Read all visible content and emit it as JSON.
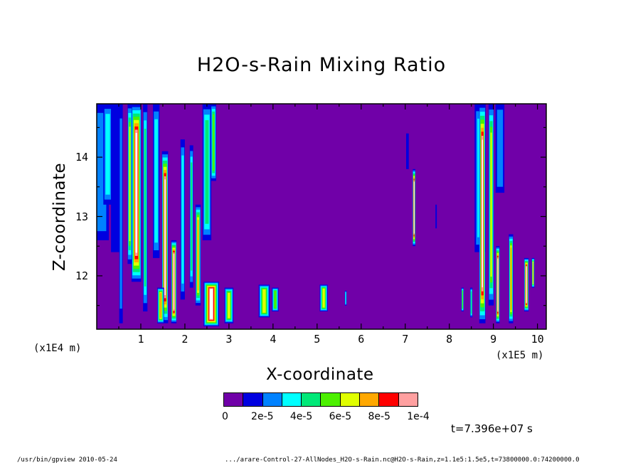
{
  "chart_data": {
    "type": "heatmap",
    "title": "H2O-s-Rain Mixing Ratio",
    "xlabel": "X-coordinate",
    "ylabel": "Z-coordinate",
    "x_unit_left": "(x1E4 m)",
    "x_unit_right": "(x1E5 m)",
    "xlim": [
      0,
      10.2
    ],
    "ylim": [
      11.1,
      14.9
    ],
    "x_ticks": [
      "1",
      "2",
      "3",
      "4",
      "5",
      "6",
      "7",
      "8",
      "9",
      "10"
    ],
    "y_ticks": [
      "12",
      "13",
      "14"
    ],
    "colorbar": {
      "levels": [
        0,
        1e-05,
        2e-05,
        3e-05,
        4e-05,
        5e-05,
        6e-05,
        7e-05,
        8e-05,
        9e-05,
        0.0001
      ],
      "colors": [
        "#7000a8",
        "#0000e0",
        "#0082ff",
        "#00ffff",
        "#00e878",
        "#4cf000",
        "#e0ff00",
        "#ffa800",
        "#ff0000",
        "#ffa0a0"
      ],
      "tick_labels": [
        "0",
        "2e-5",
        "4e-5",
        "6e-5",
        "8e-5",
        "1e-4"
      ],
      "above_max_color": "#ffffff"
    },
    "features": [
      {
        "x": 0.1,
        "z0": 12.6,
        "z1": 14.9,
        "level": 2,
        "w": 0.35
      },
      {
        "x": 0.25,
        "z0": 13.2,
        "z1": 14.9,
        "level": 3,
        "w": 0.2
      },
      {
        "x": 0.45,
        "z0": 12.4,
        "z1": 14.9,
        "level": 1,
        "w": 0.25
      },
      {
        "x": 0.55,
        "z0": 11.2,
        "z1": 14.9,
        "level": 2,
        "w": 0.08
      },
      {
        "x": 0.9,
        "z0": 11.9,
        "z1": 14.9,
        "level": 10,
        "w": 0.22
      },
      {
        "x": 0.75,
        "z0": 12.2,
        "z1": 14.9,
        "level": 6,
        "w": 0.1
      },
      {
        "x": 1.1,
        "z0": 11.4,
        "z1": 14.9,
        "level": 4,
        "w": 0.1
      },
      {
        "x": 1.35,
        "z0": 12.3,
        "z1": 14.9,
        "level": 3,
        "w": 0.15
      },
      {
        "x": 1.55,
        "z0": 11.2,
        "z1": 14.1,
        "level": 10,
        "w": 0.14
      },
      {
        "x": 1.45,
        "z0": 11.2,
        "z1": 11.8,
        "level": 7,
        "w": 0.15
      },
      {
        "x": 1.75,
        "z0": 11.2,
        "z1": 12.6,
        "level": 10,
        "w": 0.12
      },
      {
        "x": 1.95,
        "z0": 11.6,
        "z1": 14.3,
        "level": 3,
        "w": 0.1
      },
      {
        "x": 2.15,
        "z0": 11.8,
        "z1": 14.2,
        "level": 4,
        "w": 0.08
      },
      {
        "x": 2.3,
        "z0": 11.5,
        "z1": 13.2,
        "level": 7,
        "w": 0.12
      },
      {
        "x": 2.5,
        "z0": 12.6,
        "z1": 14.9,
        "level": 4,
        "w": 0.2
      },
      {
        "x": 2.65,
        "z0": 13.6,
        "z1": 14.9,
        "level": 5,
        "w": 0.12
      },
      {
        "x": 2.6,
        "z0": 11.15,
        "z1": 11.9,
        "level": 10,
        "w": 0.35
      },
      {
        "x": 3.0,
        "z0": 11.2,
        "z1": 11.8,
        "level": 6,
        "w": 0.2
      },
      {
        "x": 3.8,
        "z0": 11.3,
        "z1": 11.85,
        "level": 6,
        "w": 0.25
      },
      {
        "x": 4.05,
        "z0": 11.4,
        "z1": 11.8,
        "level": 5,
        "w": 0.15
      },
      {
        "x": 5.15,
        "z0": 11.4,
        "z1": 11.85,
        "level": 6,
        "w": 0.18
      },
      {
        "x": 5.65,
        "z0": 11.5,
        "z1": 11.75,
        "level": 3,
        "w": 0.04
      },
      {
        "x": 7.05,
        "z0": 13.8,
        "z1": 14.4,
        "level": 1,
        "w": 0.06
      },
      {
        "x": 7.2,
        "z0": 12.5,
        "z1": 13.8,
        "level": 10,
        "w": 0.06
      },
      {
        "x": 7.7,
        "z0": 12.8,
        "z1": 13.2,
        "level": 1,
        "w": 0.03
      },
      {
        "x": 8.3,
        "z0": 11.4,
        "z1": 11.8,
        "level": 5,
        "w": 0.05
      },
      {
        "x": 8.5,
        "z0": 11.3,
        "z1": 11.8,
        "level": 4,
        "w": 0.05
      },
      {
        "x": 8.7,
        "z0": 12.4,
        "z1": 14.9,
        "level": 3,
        "w": 0.25
      },
      {
        "x": 8.75,
        "z0": 11.2,
        "z1": 14.9,
        "level": 10,
        "w": 0.14
      },
      {
        "x": 8.95,
        "z0": 11.5,
        "z1": 14.9,
        "level": 6,
        "w": 0.12
      },
      {
        "x": 9.15,
        "z0": 13.4,
        "z1": 14.9,
        "level": 2,
        "w": 0.2
      },
      {
        "x": 9.1,
        "z0": 11.2,
        "z1": 12.5,
        "level": 10,
        "w": 0.08
      },
      {
        "x": 9.4,
        "z0": 11.2,
        "z1": 12.7,
        "level": 7,
        "w": 0.1
      },
      {
        "x": 9.75,
        "z0": 11.4,
        "z1": 12.3,
        "level": 10,
        "w": 0.1
      },
      {
        "x": 9.9,
        "z0": 11.8,
        "z1": 12.3,
        "level": 7,
        "w": 0.06
      }
    ]
  },
  "time_label": "t=7.396e+07 s",
  "footer_left": "/usr/bin/gpview  2010-05-24",
  "footer_right": ".../arare-Control-27-AllNodes_H2O-s-Rain.nc@H2O-s-Rain,z=1.1e5:1.5e5,t=73800000.0:74200000.0"
}
